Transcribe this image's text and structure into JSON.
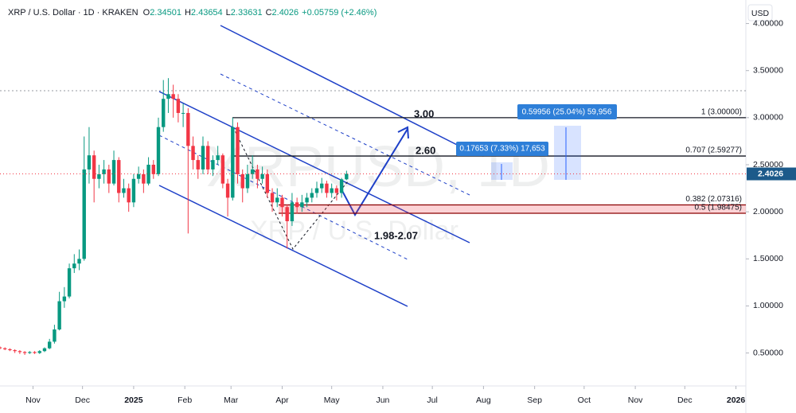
{
  "chart_data": {
    "type": "candlestick",
    "title": "XRP / U.S. Dollar · 1D · KRAKEN",
    "ohlc_labels": [
      "O",
      "H",
      "L",
      "C"
    ],
    "change_label": "+0.05759 (+2.46%)",
    "currency": "USD",
    "watermark": "XRPUSD, 1D",
    "watermark_subtitle": "XRP / U.S. Dollar",
    "up_color": "#089981",
    "down_color": "#f23645",
    "x": [
      -20,
      -17,
      -14,
      -11,
      -8,
      -5,
      -2,
      1,
      4,
      7,
      10,
      13,
      16,
      19,
      22,
      25,
      28,
      31,
      34,
      37,
      40,
      43,
      46,
      49,
      52,
      55,
      58,
      61,
      64,
      67,
      70,
      73,
      76,
      79,
      82,
      85,
      88,
      91,
      94,
      97,
      100,
      103,
      106,
      109,
      112,
      115,
      118,
      121,
      124,
      127,
      130,
      133,
      136,
      139,
      142,
      145,
      148,
      151,
      154,
      157,
      160,
      163,
      166,
      169,
      172,
      175,
      178,
      181,
      184,
      187,
      190
    ],
    "open": [
      0.56,
      0.55,
      0.54,
      0.53,
      0.52,
      0.51,
      0.5,
      0.51,
      0.5,
      0.52,
      0.55,
      0.62,
      0.75,
      1.05,
      1.1,
      1.4,
      1.45,
      1.5,
      2.45,
      2.6,
      2.35,
      2.4,
      2.45,
      2.3,
      2.55,
      2.2,
      2.25,
      2.1,
      2.35,
      2.4,
      2.3,
      2.5,
      2.4,
      2.9,
      3.2,
      3.25,
      3.2,
      3.05,
      3.05,
      2.7,
      2.55,
      2.45,
      2.7,
      2.45,
      2.55,
      2.6,
      2.3,
      2.15,
      2.9,
      2.4,
      2.25,
      2.4,
      2.45,
      2.35,
      2.4,
      2.2,
      2.1,
      2.15,
      2.05,
      1.9,
      2.1,
      2.05,
      2.1,
      2.15,
      2.2,
      2.25,
      2.3,
      2.2,
      2.25,
      2.2,
      2.34501
    ],
    "high": [
      0.57,
      0.56,
      0.55,
      0.54,
      0.53,
      0.52,
      0.52,
      0.52,
      0.53,
      0.56,
      0.65,
      0.8,
      1.15,
      1.2,
      1.45,
      1.55,
      1.6,
      2.8,
      2.9,
      2.65,
      2.5,
      2.55,
      2.5,
      2.65,
      2.58,
      2.35,
      2.3,
      2.4,
      2.48,
      2.45,
      2.58,
      2.55,
      3.0,
      3.4,
      3.42,
      3.35,
      3.25,
      3.15,
      3.1,
      2.8,
      2.6,
      2.8,
      2.75,
      2.6,
      2.7,
      2.62,
      2.35,
      3.0,
      2.95,
      2.45,
      2.5,
      2.6,
      2.5,
      2.48,
      2.45,
      2.25,
      2.25,
      2.18,
      2.08,
      2.2,
      2.15,
      2.18,
      2.2,
      2.25,
      2.32,
      2.36,
      2.33,
      2.3,
      2.28,
      2.36,
      2.43654
    ],
    "low": [
      0.54,
      0.53,
      0.52,
      0.5,
      0.49,
      0.48,
      0.49,
      0.49,
      0.49,
      0.51,
      0.54,
      0.6,
      0.74,
      0.98,
      1.08,
      1.35,
      1.38,
      1.48,
      2.3,
      2.1,
      2.25,
      2.3,
      2.2,
      2.28,
      2.1,
      2.15,
      2.0,
      2.05,
      2.3,
      2.2,
      2.28,
      2.35,
      2.38,
      2.85,
      3.05,
      3.0,
      2.95,
      2.9,
      1.77,
      2.45,
      2.35,
      2.4,
      2.4,
      2.38,
      2.5,
      2.25,
      1.95,
      2.12,
      2.3,
      2.1,
      2.2,
      2.35,
      2.25,
      2.3,
      2.15,
      2.0,
      2.05,
      1.95,
      1.61,
      1.85,
      1.98,
      2.0,
      2.05,
      2.1,
      2.15,
      2.2,
      2.15,
      2.15,
      2.12,
      2.15,
      2.33631
    ],
    "close": [
      0.55,
      0.54,
      0.53,
      0.52,
      0.51,
      0.5,
      0.51,
      0.5,
      0.52,
      0.55,
      0.62,
      0.75,
      1.05,
      1.1,
      1.4,
      1.45,
      1.5,
      2.45,
      2.6,
      2.35,
      2.4,
      2.45,
      2.3,
      2.55,
      2.2,
      2.25,
      2.1,
      2.35,
      2.4,
      2.3,
      2.5,
      2.4,
      2.9,
      3.2,
      3.25,
      3.2,
      3.05,
      3.05,
      2.7,
      2.55,
      2.45,
      2.7,
      2.45,
      2.55,
      2.6,
      2.3,
      2.15,
      2.9,
      2.4,
      2.25,
      2.4,
      2.45,
      2.35,
      2.4,
      2.2,
      2.1,
      2.15,
      2.05,
      1.9,
      2.1,
      2.05,
      2.1,
      2.15,
      2.2,
      2.25,
      2.3,
      2.2,
      2.25,
      2.2,
      2.34501,
      2.4026
    ],
    "xlim": [
      -20,
      432
    ],
    "xticks": [
      {
        "value": 0,
        "label": "Nov"
      },
      {
        "value": 30,
        "label": "Dec"
      },
      {
        "value": 61,
        "label": "2025"
      },
      {
        "value": 92,
        "label": "Feb"
      },
      {
        "value": 120,
        "label": "Mar"
      },
      {
        "value": 151,
        "label": "Apr"
      },
      {
        "value": 181,
        "label": "May"
      },
      {
        "value": 212,
        "label": "Jun"
      },
      {
        "value": 242,
        "label": "Jul"
      },
      {
        "value": 273,
        "label": "Aug"
      },
      {
        "value": 304,
        "label": "Sep"
      },
      {
        "value": 334,
        "label": "Oct"
      },
      {
        "value": 365,
        "label": "Nov"
      },
      {
        "value": 395,
        "label": "Dec"
      },
      {
        "value": 426,
        "label": "2026"
      }
    ],
    "ylim": [
      0.15,
      4.25
    ],
    "yticks": [
      {
        "value": 0.5,
        "label": "0.50000"
      },
      {
        "value": 1,
        "label": "1.00000"
      },
      {
        "value": 1.5,
        "label": "1.50000"
      },
      {
        "value": 2,
        "label": "2.00000"
      },
      {
        "value": 2.5,
        "label": "2.50000"
      },
      {
        "value": 3,
        "label": "3.00000"
      },
      {
        "value": 3.5,
        "label": "3.50000"
      },
      {
        "value": 4,
        "label": "4.00000"
      }
    ],
    "fib_levels": [
      {
        "label": "1 (3.00000)",
        "value": 3
      },
      {
        "label": "0.707 (2.59277)",
        "value": 2.59277
      },
      {
        "label": "0.382 (2.07316)",
        "value": 2.07316
      },
      {
        "label": "0.5 (1.98475)",
        "value": 1.98475
      }
    ],
    "annotations": [
      "3.00",
      "2.60",
      "1.98-2.07"
    ],
    "measurements": [
      "0.17653 (7.33%) 17,653",
      "0.59956 (25.04%) 59,956"
    ]
  }
}
